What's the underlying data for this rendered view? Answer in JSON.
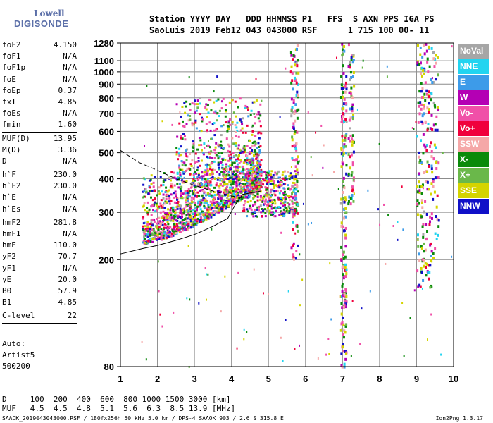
{
  "logo": {
    "top": "Lowell",
    "bottom": "DIGISONDE"
  },
  "header": {
    "line1": "Station YYYY DAY   DDD HHMMSS P1   FFS  S AXN PPS IGA PS",
    "line2": "SaoLuis 2019 Feb12 043 043000 RSF      1 715 100 00- 11"
  },
  "params_group1": [
    {
      "k": "foF2",
      "v": "4.150"
    },
    {
      "k": "foF1",
      "v": "N/A"
    },
    {
      "k": "foF1p",
      "v": "N/A"
    },
    {
      "k": "foE",
      "v": "N/A"
    },
    {
      "k": "foEp",
      "v": "0.37"
    },
    {
      "k": "fxI",
      "v": "4.85"
    },
    {
      "k": "foEs",
      "v": "N/A"
    },
    {
      "k": "fmin",
      "v": "1.60"
    }
  ],
  "params_group2": [
    {
      "k": "MUF(D)",
      "v": "13.95"
    },
    {
      "k": "M(D)",
      "v": "3.36"
    },
    {
      "k": "D",
      "v": "N/A"
    }
  ],
  "params_group3": [
    {
      "k": "h`F",
      "v": "230.0"
    },
    {
      "k": "h`F2",
      "v": "230.0"
    },
    {
      "k": "h`E",
      "v": "N/A"
    },
    {
      "k": "h`Es",
      "v": "N/A"
    }
  ],
  "params_group4": [
    {
      "k": "hmF2",
      "v": "281.8"
    },
    {
      "k": "hmF1",
      "v": "N/A"
    },
    {
      "k": "hmE",
      "v": "110.0"
    },
    {
      "k": "yF2",
      "v": "70.7"
    },
    {
      "k": "yF1",
      "v": "N/A"
    },
    {
      "k": "yE",
      "v": "20.0"
    },
    {
      "k": "B0",
      "v": "57.9"
    },
    {
      "k": "B1",
      "v": "4.85"
    }
  ],
  "clevel": {
    "k": "C-level",
    "v": "22"
  },
  "auto": [
    "Auto:",
    "Artist5",
    "500200"
  ],
  "dmuf": {
    "d_line": "D     100  200  400  600  800 1000 1500 3000 [km]",
    "muf_line": "MUF   4.5  4.5  4.8  5.1  5.6  6.3  8.5 13.9 [MHz]"
  },
  "footer": {
    "left": "SAAOK_2019043043000.RSF / 180fx256h 50 kHz 5.0 km / DPS-4 SAAOK 903 / 2.6 S 315.8 E",
    "right": "Ion2Png 1.3.17"
  },
  "legend": [
    {
      "label": "NoVal",
      "color": "#a6a6a6"
    },
    {
      "label": "NNE",
      "color": "#22d4f0"
    },
    {
      "label": "E",
      "color": "#3d9be9"
    },
    {
      "label": "W",
      "color": "#b400b4"
    },
    {
      "label": "Vo-",
      "color": "#f050a8"
    },
    {
      "label": "Vo+",
      "color": "#f0003c"
    },
    {
      "label": "SSW",
      "color": "#f5a8a8"
    },
    {
      "label": "X-",
      "color": "#0a8a0a"
    },
    {
      "label": "X+",
      "color": "#6ab84a"
    },
    {
      "label": "SSE",
      "color": "#d4d400"
    },
    {
      "label": "NNW",
      "color": "#1010c8"
    }
  ],
  "chart_data": {
    "type": "scatter",
    "xlabel": "",
    "ylabel": "",
    "x_ticks": [
      1,
      2,
      3,
      4,
      5,
      6,
      7,
      8,
      9,
      10
    ],
    "xlim": [
      1,
      10
    ],
    "y_ticks": [
      80,
      200,
      300,
      400,
      500,
      600,
      700,
      800,
      900,
      1000,
      1100,
      1280
    ],
    "y_scale": "log",
    "ylim": [
      80,
      1280
    ],
    "grid": true,
    "legend_placement": "right",
    "trace_clusters": [
      {
        "name": "F2 trace",
        "x_range": [
          1.6,
          4.8
        ],
        "h_range": [
          220,
          500
        ]
      },
      {
        "name": "F2 upper spread",
        "x_range": [
          2.5,
          4.8
        ],
        "h_range": [
          380,
          800
        ]
      },
      {
        "name": "F spread",
        "x_range": [
          4.3,
          5.8
        ],
        "h_range": [
          290,
          430
        ]
      },
      {
        "name": "Interference 5.7 MHz",
        "x_range": [
          5.6,
          5.8
        ],
        "h_range": [
          200,
          1280
        ]
      },
      {
        "name": "Interference 7 MHz",
        "x_range": [
          6.95,
          7.1
        ],
        "h_range": [
          80,
          1280
        ]
      },
      {
        "name": "Interference 7.2 MHz",
        "x_range": [
          7.15,
          7.3
        ],
        "h_range": [
          300,
          1280
        ]
      },
      {
        "name": "Interference 9.2 MHz",
        "x_range": [
          9.0,
          9.4
        ],
        "h_range": [
          150,
          1280
        ]
      },
      {
        "name": "Interference 9.5 MHz",
        "x_range": [
          9.4,
          9.6
        ],
        "h_range": [
          200,
          1280
        ]
      }
    ],
    "solid_curve": [
      [
        1.0,
        210
      ],
      [
        1.6,
        220
      ],
      [
        2.0,
        226
      ],
      [
        2.5,
        236
      ],
      [
        3.0,
        248
      ],
      [
        3.5,
        266
      ],
      [
        3.9,
        285
      ],
      [
        4.1,
        320
      ],
      [
        4.3,
        350
      ],
      [
        4.8,
        360
      ]
    ],
    "dashed_curve": [
      [
        1.0,
        510
      ],
      [
        1.5,
        460
      ],
      [
        2.0,
        430
      ],
      [
        2.5,
        400
      ],
      [
        3.0,
        378
      ],
      [
        3.5,
        360
      ],
      [
        4.0,
        345
      ],
      [
        4.3,
        340
      ]
    ]
  }
}
